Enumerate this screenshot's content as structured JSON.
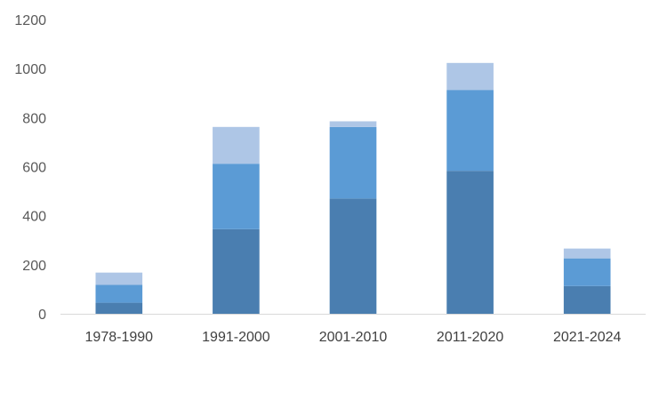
{
  "chart_data": {
    "type": "bar",
    "stacked": true,
    "title": "",
    "xlabel": "",
    "ylabel": "",
    "categories": [
      "1978-1990",
      "1991-2000",
      "2001-2010",
      "2011-2020",
      "2021-2024"
    ],
    "series": [
      {
        "color": "#4a7eb0",
        "values": [
          45,
          345,
          470,
          583,
          113
        ]
      },
      {
        "color": "#5b9bd5",
        "values": [
          73,
          267,
          292,
          330,
          113
        ]
      },
      {
        "color": "#aec6e6",
        "values": [
          50,
          150,
          23,
          110,
          40
        ]
      }
    ],
    "ylim": [
      0,
      1200
    ],
    "yticks": [
      0,
      200,
      400,
      600,
      800,
      1000,
      1200
    ],
    "grid": false,
    "legend": "none",
    "axis_color": "#d9d9d9"
  }
}
